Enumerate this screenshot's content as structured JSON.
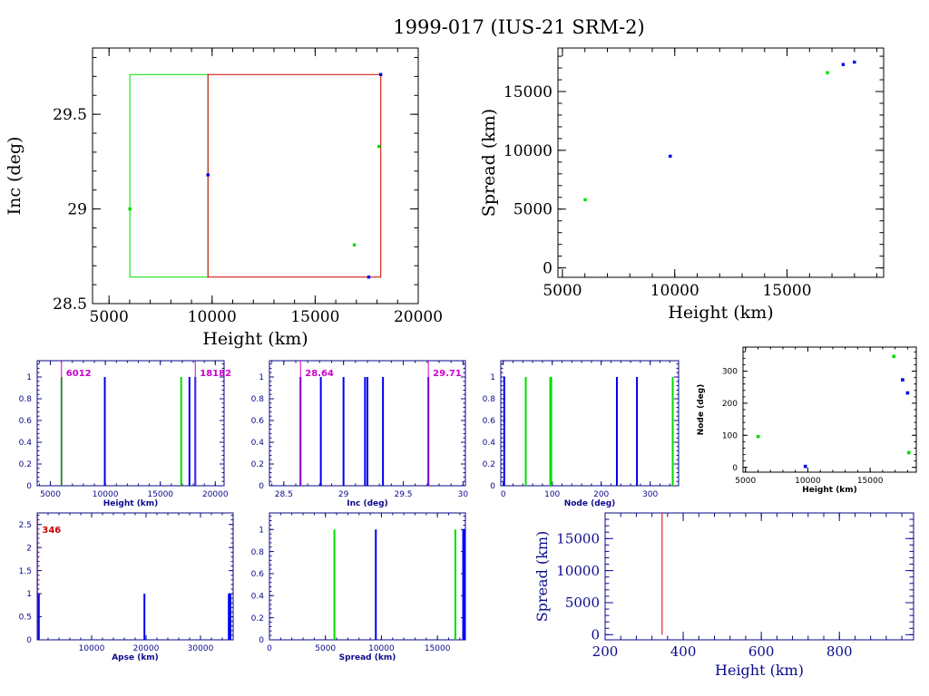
{
  "page_title": "1999-017 (IUS-21 SRM-2)",
  "colors": {
    "axis": "#000000",
    "navy": "#0a0a8a",
    "blue": "#0000ee",
    "green": "#00dd00",
    "red": "#cc0000",
    "magenta": "#cc00cc"
  },
  "chart_data": [
    {
      "id": "inc_vs_height",
      "type": "scatter",
      "xlabel": "Height (km)",
      "ylabel": "Inc (deg)",
      "xlim": [
        4200,
        20000
      ],
      "ylim": [
        28.5,
        29.85
      ],
      "xticks": [
        5000,
        10000,
        15000,
        20000
      ],
      "yticks": [
        28.5,
        29,
        29.5
      ],
      "ytick_labels": [
        "28.5",
        "29",
        "29.5"
      ],
      "points": [
        {
          "x": 6012,
          "y": 29.0,
          "color": "green"
        },
        {
          "x": 9800,
          "y": 29.18,
          "color": "blue"
        },
        {
          "x": 16900,
          "y": 28.81,
          "color": "green"
        },
        {
          "x": 17600,
          "y": 28.64,
          "color": "blue"
        },
        {
          "x": 18100,
          "y": 29.33,
          "color": "green"
        },
        {
          "x": 18182,
          "y": 29.71,
          "color": "blue"
        }
      ],
      "boxes": [
        {
          "x0": 6012,
          "x1": 9800,
          "y0": 28.64,
          "y1": 29.71,
          "color": "green"
        },
        {
          "x0": 9800,
          "x1": 18182,
          "y0": 28.64,
          "y1": 29.71,
          "color": "red"
        }
      ]
    },
    {
      "id": "spread_vs_height_top",
      "type": "scatter",
      "xlabel": "Height (km)",
      "ylabel": "Spread (km)",
      "xlim": [
        4800,
        19300
      ],
      "ylim": [
        -800,
        18700
      ],
      "xticks": [
        5000,
        10000,
        15000
      ],
      "yticks": [
        0,
        5000,
        10000,
        15000
      ],
      "points": [
        {
          "x": 6012,
          "y": 5800,
          "color": "green"
        },
        {
          "x": 9800,
          "y": 9500,
          "color": "blue"
        },
        {
          "x": 16800,
          "y": 16600,
          "color": "green"
        },
        {
          "x": 17500,
          "y": 17300,
          "color": "blue"
        },
        {
          "x": 18000,
          "y": 17500,
          "color": "blue"
        }
      ]
    },
    {
      "id": "hist_height",
      "type": "bar",
      "xlabel": "Height (km)",
      "xlim": [
        3800,
        20800
      ],
      "ylim": [
        0,
        1.15
      ],
      "xticks": [
        5000,
        10000,
        15000,
        20000
      ],
      "yticks": [
        0,
        0.2,
        0.4,
        0.6,
        0.8,
        1
      ],
      "bars": [
        {
          "x": 6012,
          "h": 1,
          "color": "green"
        },
        {
          "x": 9950,
          "h": 1,
          "color": "blue"
        },
        {
          "x": 16900,
          "h": 1,
          "color": "green"
        },
        {
          "x": 17650,
          "h": 1,
          "color": "blue"
        },
        {
          "x": 18182,
          "h": 1,
          "color": "blue"
        }
      ],
      "markers": [
        {
          "x": 6012,
          "label": "6012",
          "side": "right"
        },
        {
          "x": 18182,
          "label": "18182",
          "side": "right"
        }
      ]
    },
    {
      "id": "hist_inc",
      "type": "bar",
      "xlabel": "Inc (deg)",
      "xlim": [
        28.38,
        30.02
      ],
      "ylim": [
        0,
        1.15
      ],
      "xticks": [
        28.5,
        29,
        29.5,
        30
      ],
      "xtick_labels": [
        "28.5",
        "29",
        "29.5",
        "30"
      ],
      "yticks": [
        0,
        0.2,
        0.4,
        0.6,
        0.8,
        1
      ],
      "bars": [
        {
          "x": 28.64,
          "h": 1,
          "color": "blue"
        },
        {
          "x": 28.81,
          "h": 1,
          "color": "blue"
        },
        {
          "x": 29.0,
          "h": 1,
          "color": "blue"
        },
        {
          "x": 29.18,
          "h": 1,
          "color": "blue"
        },
        {
          "x": 29.2,
          "h": 1,
          "color": "blue"
        },
        {
          "x": 29.33,
          "h": 1,
          "color": "blue"
        },
        {
          "x": 29.71,
          "h": 1,
          "color": "blue"
        }
      ],
      "markers": [
        {
          "x": 28.64,
          "label": "28.64",
          "side": "right"
        },
        {
          "x": 29.71,
          "label": "29.71",
          "side": "right"
        }
      ]
    },
    {
      "id": "hist_node",
      "type": "bar",
      "xlabel": "Node (deg)",
      "xlim": [
        -5,
        358
      ],
      "ylim": [
        0,
        1.15
      ],
      "xticks": [
        0,
        100,
        200,
        300
      ],
      "yticks": [
        0,
        0.2,
        0.4,
        0.6,
        0.8,
        1
      ],
      "bars": [
        {
          "x": 2,
          "h": 1,
          "color": "blue"
        },
        {
          "x": 46,
          "h": 1,
          "color": "green"
        },
        {
          "x": 96,
          "h": 1,
          "color": "green"
        },
        {
          "x": 98,
          "h": 1,
          "color": "green"
        },
        {
          "x": 232,
          "h": 1,
          "color": "blue"
        },
        {
          "x": 273,
          "h": 1,
          "color": "blue"
        },
        {
          "x": 346,
          "h": 1,
          "color": "green"
        }
      ]
    },
    {
      "id": "node_vs_height",
      "type": "scatter",
      "xlabel": "Height (km)",
      "ylabel": "Node (deg)",
      "xlim": [
        4800,
        18700
      ],
      "ylim": [
        -15,
        375
      ],
      "xticks": [
        5000,
        10000,
        15000
      ],
      "yticks": [
        0,
        100,
        200,
        300
      ],
      "points": [
        {
          "x": 6012,
          "y": 96,
          "color": "green"
        },
        {
          "x": 9800,
          "y": 3,
          "color": "blue"
        },
        {
          "x": 16900,
          "y": 346,
          "color": "green"
        },
        {
          "x": 17600,
          "y": 273,
          "color": "blue"
        },
        {
          "x": 18000,
          "y": 232,
          "color": "blue"
        },
        {
          "x": 18100,
          "y": 46,
          "color": "green"
        }
      ]
    },
    {
      "id": "hist_apse",
      "type": "bar",
      "xlabel": "Apse (km)",
      "xlim": [
        0,
        36000
      ],
      "ylim": [
        0,
        2.75
      ],
      "xticks": [
        10000,
        20000,
        30000
      ],
      "yticks": [
        0,
        0.5,
        1,
        1.5,
        2,
        2.5
      ],
      "bars": [
        {
          "x": 150,
          "h": 1,
          "color": "blue"
        },
        {
          "x": 300,
          "h": 1,
          "color": "blue"
        },
        {
          "x": 19700,
          "h": 1,
          "color": "blue"
        },
        {
          "x": 35200,
          "h": 1,
          "color": "blue"
        },
        {
          "x": 35500,
          "h": 1,
          "color": "blue"
        }
      ],
      "markers": [
        {
          "x": 60,
          "label": "346",
          "side": "right"
        }
      ]
    },
    {
      "id": "hist_spread",
      "type": "bar",
      "xlabel": "Spread (km)",
      "xlim": [
        0,
        17500
      ],
      "ylim": [
        0,
        1.15
      ],
      "xticks": [
        0,
        5000,
        10000,
        15000
      ],
      "yticks": [
        0,
        0.2,
        0.4,
        0.6,
        0.8,
        1
      ],
      "bars": [
        {
          "x": 5800,
          "h": 1,
          "color": "green"
        },
        {
          "x": 9500,
          "h": 1,
          "color": "blue"
        },
        {
          "x": 16600,
          "h": 1,
          "color": "green"
        },
        {
          "x": 17300,
          "h": 1,
          "color": "blue"
        },
        {
          "x": 17450,
          "h": 1,
          "color": "blue"
        }
      ]
    },
    {
      "id": "spread_vs_height_bottom",
      "type": "line",
      "xlabel": "Height (km)",
      "ylabel": "Spread (km)",
      "xlim": [
        200,
        990
      ],
      "ylim": [
        -800,
        19000
      ],
      "xticks": [
        200,
        400,
        600,
        800
      ],
      "yticks": [
        0,
        5000,
        10000,
        15000
      ],
      "segments": [
        {
          "x0": 346,
          "y0": 0,
          "x1": 346,
          "y1": 19000,
          "color": "red"
        }
      ]
    }
  ]
}
